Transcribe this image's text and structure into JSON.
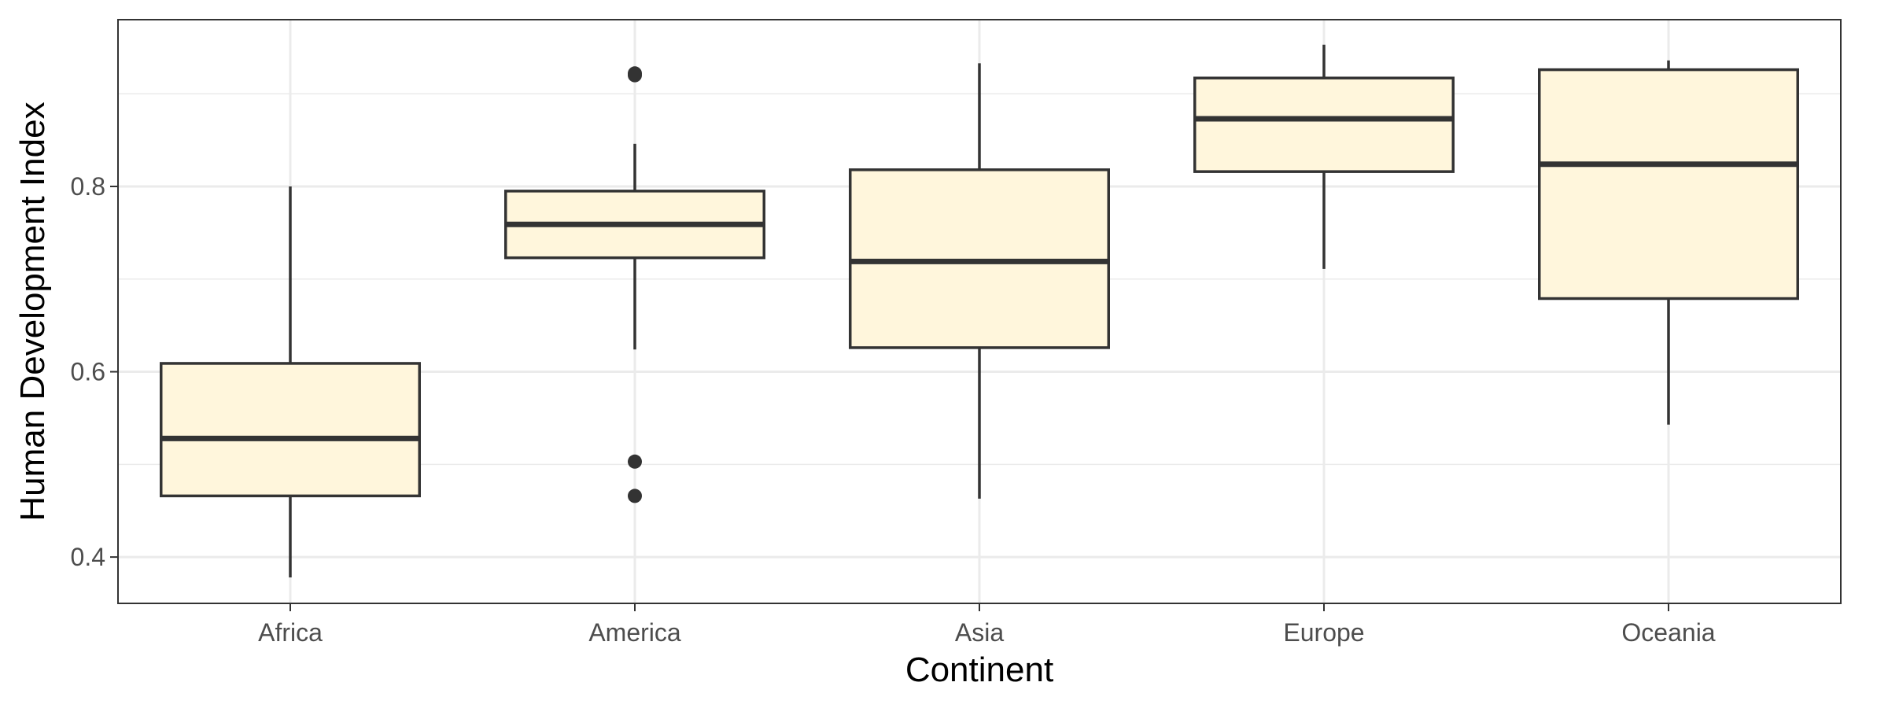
{
  "chart_data": {
    "type": "boxplot",
    "title": "",
    "xlabel": "Continent",
    "ylabel": "Human Development Index",
    "categories": [
      "Africa",
      "America",
      "Asia",
      "Europe",
      "Oceania"
    ],
    "ylim": [
      0.35,
      0.98
    ],
    "y_ticks": [
      0.4,
      0.6,
      0.8
    ],
    "y_tick_labels": [
      "0.4",
      "0.6",
      "0.8"
    ],
    "grid": true,
    "colors": {
      "box_fill": "#FFF6DC",
      "box_stroke": "#333333",
      "grid": "#EBEBEB",
      "panel_border": "#333333"
    },
    "boxes": [
      {
        "category": "Africa",
        "min": 0.378,
        "q1": 0.466,
        "median": 0.528,
        "q3": 0.609,
        "max": 0.8,
        "outliers": []
      },
      {
        "category": "America",
        "min": 0.624,
        "q1": 0.723,
        "median": 0.759,
        "q3": 0.795,
        "max": 0.846,
        "outliers": [
          0.92,
          0.922,
          0.503,
          0.466
        ]
      },
      {
        "category": "Asia",
        "min": 0.463,
        "q1": 0.626,
        "median": 0.719,
        "q3": 0.818,
        "max": 0.933,
        "outliers": []
      },
      {
        "category": "Europe",
        "min": 0.711,
        "q1": 0.816,
        "median": 0.873,
        "q3": 0.917,
        "max": 0.953,
        "outliers": []
      },
      {
        "category": "Oceania",
        "min": 0.543,
        "q1": 0.679,
        "median": 0.824,
        "q3": 0.926,
        "max": 0.936,
        "outliers": []
      }
    ]
  }
}
